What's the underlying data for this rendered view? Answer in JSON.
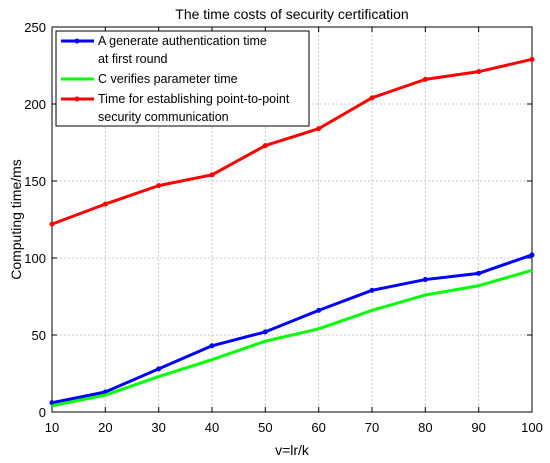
{
  "chart_data": {
    "type": "line",
    "title": "The time costs of security certification",
    "xlabel": "v=lr/k",
    "ylabel": "Computing time/ms",
    "x": [
      10,
      20,
      30,
      40,
      50,
      60,
      70,
      80,
      90,
      100
    ],
    "xlim": [
      10,
      100
    ],
    "ylim": [
      0,
      250
    ],
    "xticks": [
      "10",
      "20",
      "30",
      "40",
      "50",
      "60",
      "70",
      "80",
      "90",
      "100"
    ],
    "yticks": [
      "0",
      "50",
      "100",
      "150",
      "200",
      "250"
    ],
    "grid": true,
    "legend_position": "top-left",
    "series": [
      {
        "name_lines": [
          "A generate authentication time",
          "at first round"
        ],
        "color": "#0000ff",
        "marker": "dot",
        "values": [
          6,
          13,
          28,
          43,
          52,
          66,
          79,
          86,
          90,
          102
        ]
      },
      {
        "name_lines": [
          "C verifies parameter time"
        ],
        "color": "#00ff00",
        "marker": "none",
        "values": [
          4,
          11,
          23,
          34,
          46,
          54,
          66,
          76,
          82,
          92
        ]
      },
      {
        "name_lines": [
          "Time for establishing point-to-point",
          "security communication"
        ],
        "color": "#ff0000",
        "marker": "dot",
        "values": [
          122,
          135,
          147,
          154,
          173,
          184,
          204,
          216,
          221,
          229
        ]
      }
    ]
  }
}
